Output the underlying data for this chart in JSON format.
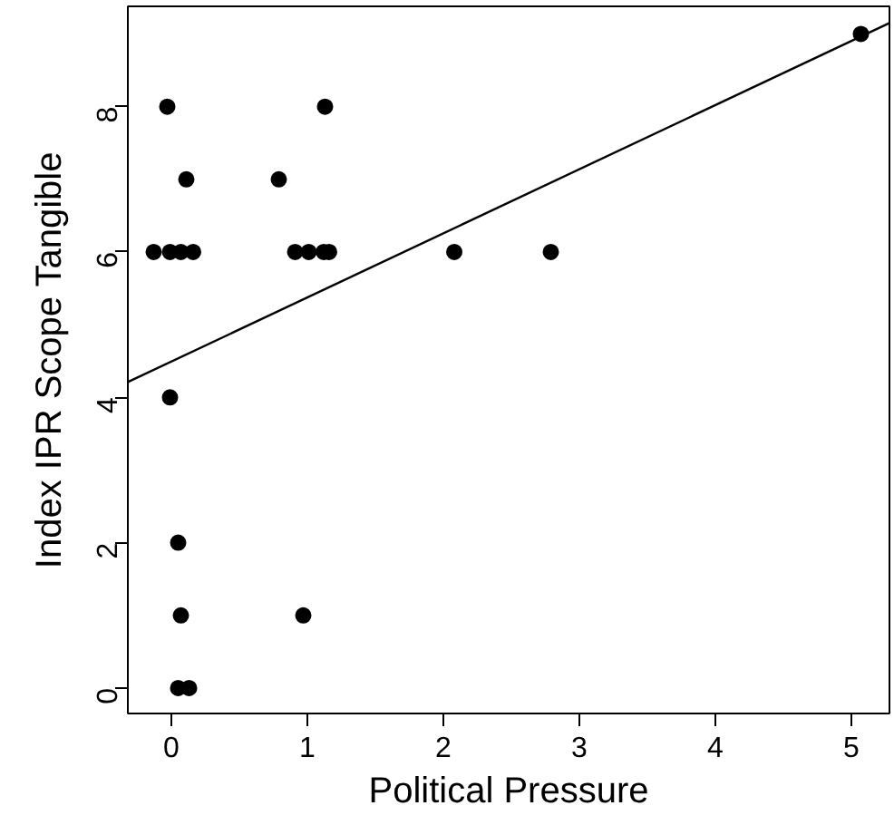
{
  "chart_data": {
    "type": "scatter",
    "xlabel": "Political Pressure",
    "ylabel": "Index IPR Scope Tangible",
    "xlim": [
      -0.32,
      5.28
    ],
    "ylim": [
      -0.35,
      9.38
    ],
    "xticks": [
      0,
      1,
      2,
      3,
      4,
      5
    ],
    "yticks": [
      0,
      2,
      4,
      6,
      8
    ],
    "grid": false,
    "series": [
      {
        "color": "#000000",
        "marker": "circle",
        "x": [
          -0.03,
          1.13,
          0.11,
          0.79,
          -0.13,
          -0.01,
          0.07,
          0.16,
          0.91,
          1.01,
          1.12,
          1.16,
          2.08,
          2.79,
          5.07,
          -0.01,
          0.05,
          0.07,
          0.97,
          0.05,
          0.13
        ],
        "values": [
          8,
          8,
          7,
          7,
          6,
          6,
          6,
          6,
          6,
          6,
          6,
          6,
          6,
          6,
          9,
          4,
          2,
          1,
          1,
          0,
          0
        ]
      },
      {
        "type": "line",
        "color": "#000000",
        "x": [
          -0.32,
          5.28
        ],
        "values": [
          4.21,
          9.15
        ],
        "line_style": "solid",
        "marker": "none"
      }
    ]
  }
}
